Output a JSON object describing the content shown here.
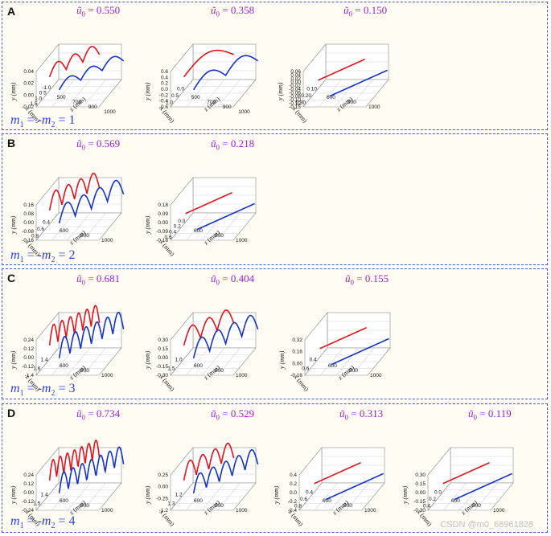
{
  "figure": {
    "watermark": "CSDN @m0_68961828",
    "u0_symbol": "ũ",
    "y_label": "y (mm)",
    "x_label": "x (mm)",
    "z_label": "z (mm)"
  },
  "chart_data": [
    {
      "panel": "A",
      "mode_label": "m",
      "mode_value": "1",
      "subplots": [
        {
          "u0": "0.550",
          "yticks": [
            "0.04",
            "0.02",
            "0.00",
            "-0.02"
          ],
          "xticks": [
            "-1.0",
            "0.5",
            "1.0",
            "1.5"
          ],
          "zticks": [
            "500",
            "700",
            "900",
            "1000"
          ],
          "red_cycles": 3,
          "blue_cycles": 3,
          "red_amp": 0.6,
          "blue_amp": 0.45,
          "type": "line"
        },
        {
          "u0": "0.358",
          "yticks": [
            "0.6",
            "0.4",
            "0.2",
            "0.0",
            "-0.2",
            "-0.4",
            "-0.6"
          ],
          "xticks": [
            "0.0",
            "0.5",
            "1.0"
          ],
          "zticks": [
            "500",
            "700",
            "900",
            "1000"
          ],
          "red_cycles": 1,
          "blue_cycles": 2,
          "red_amp": 0.7,
          "blue_amp": 0.6,
          "type": "line"
        },
        {
          "u0": "0.150",
          "yticks": [
            "0.06",
            "0.04",
            "0.02",
            "0.00",
            "-0.02",
            "-0.04",
            "-0.06",
            "-0.08",
            "-0.10",
            "-0.12",
            "-0.15"
          ],
          "xticks": [
            "0.10",
            "0.20",
            "0.30"
          ],
          "zticks": [
            "600",
            "900",
            "1000"
          ],
          "red_cycles": 0,
          "blue_cycles": 0,
          "red_amp": 0,
          "blue_amp": 0,
          "type": "line"
        }
      ]
    },
    {
      "panel": "B",
      "mode_label": "m",
      "mode_value": "2",
      "subplots": [
        {
          "u0": "0.569",
          "yticks": [
            "0.16",
            "0.08",
            "0.00",
            "-0.08",
            "-0.16"
          ],
          "xticks": [
            "0.4",
            "0.6",
            "0.8"
          ],
          "zticks": [
            "600",
            "800",
            "1000"
          ],
          "red_cycles": 4,
          "blue_cycles": 4,
          "red_amp": 0.9,
          "blue_amp": 0.9,
          "type": "line"
        },
        {
          "u0": "0.218",
          "yticks": [
            "0.18",
            "0.09",
            "0.00",
            "-0.09",
            "-0.18"
          ],
          "xticks": [
            "0.0",
            "0.2",
            "0.4",
            "0.6"
          ],
          "zticks": [
            "600",
            "800",
            "1000"
          ],
          "red_cycles": 0,
          "blue_cycles": 0,
          "red_amp": 0,
          "blue_amp": 0,
          "type": "line"
        }
      ]
    },
    {
      "panel": "C",
      "mode_label": "m",
      "mode_value": "3",
      "subplots": [
        {
          "u0": "0.681",
          "yticks": [
            "0.24",
            "0.12",
            "0.00",
            "-0.12",
            "-1.4"
          ],
          "xticks": [
            "1.4",
            "1.6"
          ],
          "zticks": [
            "600",
            "800",
            "1000"
          ],
          "red_cycles": 6,
          "blue_cycles": 6,
          "red_amp": 1.0,
          "blue_amp": 1.0,
          "type": "line"
        },
        {
          "u0": "0.404",
          "yticks": [
            "0.30",
            "0.15",
            "0.00",
            "-0.15",
            "-0.30"
          ],
          "xticks": [
            "1.0",
            "1.5"
          ],
          "zticks": [
            "600",
            "800",
            "1000"
          ],
          "red_cycles": 3,
          "blue_cycles": 4,
          "red_amp": 0.85,
          "blue_amp": 0.9,
          "type": "line"
        },
        {
          "u0": "0.155",
          "yticks": [
            "0.32",
            "0.16",
            "0.00",
            "-0.16"
          ],
          "xticks": [
            "0.4",
            "0.6"
          ],
          "zticks": [
            "600",
            "800",
            "1000"
          ],
          "red_cycles": 0,
          "blue_cycles": 0,
          "red_amp": 0,
          "blue_amp": 0,
          "type": "line"
        }
      ]
    },
    {
      "panel": "D",
      "mode_label": "m",
      "mode_value": "4",
      "subplots": [
        {
          "u0": "0.734",
          "yticks": [
            "0.24",
            "0.12",
            "0.00",
            "-0.12",
            "-0.24"
          ],
          "xticks": [
            "1.4",
            "1.5"
          ],
          "zticks": [
            "600",
            "800",
            "1000"
          ],
          "red_cycles": 7,
          "blue_cycles": 7,
          "red_amp": 1.0,
          "blue_amp": 1.0,
          "type": "line"
        },
        {
          "u0": "0.529",
          "yticks": [
            "0.25",
            "0.00",
            "-0.25",
            "-1.2"
          ],
          "xticks": [
            "1.2",
            "1.3"
          ],
          "zticks": [
            "600",
            "800",
            "1000"
          ],
          "red_cycles": 4,
          "blue_cycles": 5,
          "red_amp": 0.9,
          "blue_amp": 0.9,
          "type": "line"
        },
        {
          "u0": "0.313",
          "yticks": [
            "0.4",
            "0.2",
            "0.0",
            "-0.2",
            "-0.4"
          ],
          "xticks": [
            "0.4",
            "0.6",
            "0.8"
          ],
          "zticks": [
            "600",
            "800",
            "1000"
          ],
          "red_cycles": 0,
          "blue_cycles": 0,
          "red_amp": 0,
          "blue_amp": 0,
          "type": "line"
        },
        {
          "u0": "0.119",
          "yticks": [
            "0.30",
            "0.15",
            "0.00",
            "-0.15",
            "-0.30"
          ],
          "xticks": [
            "0.0",
            "0.2",
            "0.4"
          ],
          "zticks": [
            "600",
            "800",
            "1000"
          ],
          "red_cycles": 0,
          "blue_cycles": 0,
          "red_amp": 0,
          "blue_amp": 0,
          "type": "line"
        }
      ]
    }
  ]
}
